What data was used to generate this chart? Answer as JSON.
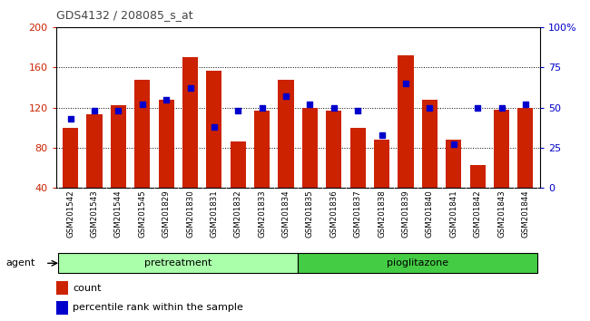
{
  "title": "GDS4132 / 208085_s_at",
  "samples": [
    "GSM201542",
    "GSM201543",
    "GSM201544",
    "GSM201545",
    "GSM201829",
    "GSM201830",
    "GSM201831",
    "GSM201832",
    "GSM201833",
    "GSM201834",
    "GSM201835",
    "GSM201836",
    "GSM201837",
    "GSM201838",
    "GSM201839",
    "GSM201840",
    "GSM201841",
    "GSM201842",
    "GSM201843",
    "GSM201844"
  ],
  "counts": [
    100,
    113,
    122,
    148,
    128,
    170,
    157,
    86,
    117,
    148,
    120,
    117,
    100,
    88,
    172,
    128,
    88,
    63,
    118,
    120
  ],
  "percentiles": [
    43,
    48,
    48,
    52,
    55,
    62,
    38,
    48,
    50,
    57,
    52,
    50,
    48,
    33,
    65,
    50,
    27,
    50,
    50,
    52
  ],
  "bar_color": "#cc2200",
  "dot_color": "#0000cc",
  "ylim_left": [
    40,
    200
  ],
  "ylim_right": [
    0,
    100
  ],
  "yticks_left": [
    40,
    80,
    120,
    160,
    200
  ],
  "yticks_right": [
    0,
    25,
    50,
    75,
    100
  ],
  "ytick_labels_right": [
    "0",
    "25",
    "50",
    "75",
    "100%"
  ],
  "grid_values": [
    80,
    120,
    160
  ],
  "pretreatment_color": "#aaffaa",
  "pioglitazone_color": "#44cc44",
  "agent_label": "agent",
  "pretreatment_label": "pretreatment",
  "pioglitazone_label": "pioglitazone",
  "legend_count_label": "count",
  "legend_pct_label": "percentile rank within the sample",
  "bar_width": 0.65,
  "sample_bg_color": "#c8c8c8",
  "plot_bg_color": "#ffffff",
  "title_color": "#444444",
  "left_tick_color": "#cc2200",
  "right_tick_color": "#0000cc",
  "pre_n": 10,
  "n": 20
}
